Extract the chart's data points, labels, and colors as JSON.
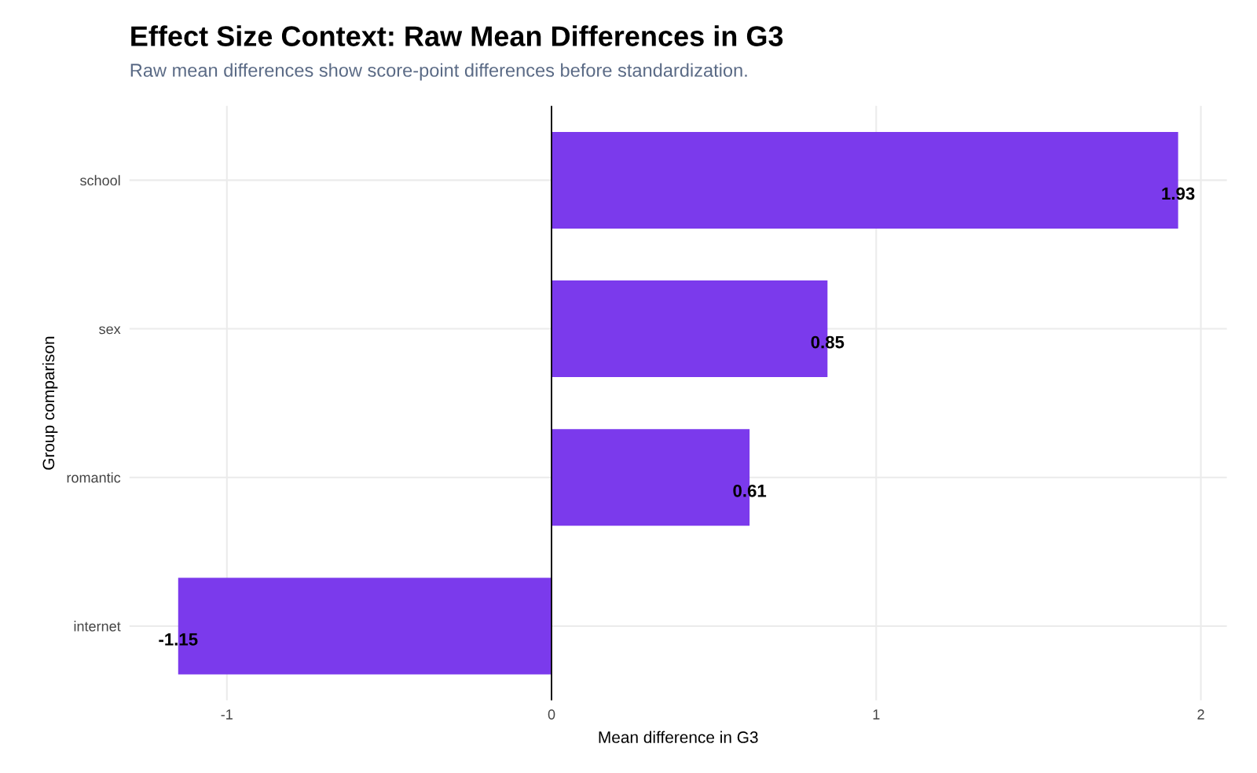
{
  "chart_data": {
    "type": "bar",
    "orientation": "horizontal",
    "title": "Effect Size Context: Raw Mean Differences in G3",
    "subtitle": "Raw mean differences show score-point differences before standardization.",
    "xlabel": "Mean difference in G3",
    "ylabel": "Group comparison",
    "categories": [
      "school",
      "sex",
      "romantic",
      "internet"
    ],
    "values": [
      1.93,
      0.85,
      0.61,
      -1.15
    ],
    "color": "#7b3aec",
    "data_labels": true,
    "xlim": [
      -1.3,
      2.08
    ],
    "xticks": [
      -1,
      0,
      1,
      2
    ],
    "ref_lines": [
      {
        "axis": "x",
        "value": 0,
        "color": "#000000"
      }
    ],
    "grid": true
  }
}
